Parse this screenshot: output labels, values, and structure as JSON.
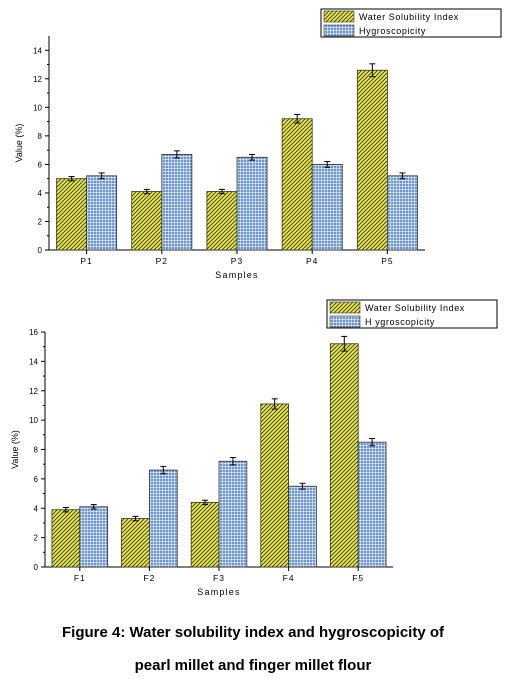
{
  "charts": [
    {
      "chart_data": {
        "type": "bar",
        "categories": [
          "P1",
          "P2",
          "P3",
          "P4",
          "P5"
        ],
        "series": [
          {
            "name": "Water Solubility Index",
            "values": [
              5.0,
              4.1,
              4.1,
              9.2,
              12.6
            ],
            "errors": [
              0.15,
              0.15,
              0.15,
              0.3,
              0.45
            ]
          },
          {
            "name": "Hygroscopicity",
            "values": [
              5.2,
              6.7,
              6.5,
              6.0,
              5.2
            ],
            "errors": [
              0.2,
              0.25,
              0.2,
              0.2,
              0.2
            ]
          }
        ],
        "xlabel": "Samples",
        "ylabel": "Value (%)",
        "ylim": [
          0,
          15
        ],
        "yticks": [
          "0",
          "2",
          "4",
          "6",
          "8",
          "10",
          "12",
          "14"
        ],
        "legend_position": "top-right",
        "grid": false
      }
    },
    {
      "chart_data": {
        "type": "bar",
        "categories": [
          "F1",
          "F2",
          "F3",
          "F4",
          "F5"
        ],
        "series": [
          {
            "name": "Water Solubility Index",
            "values": [
              3.9,
              3.3,
              4.4,
              11.1,
              15.2
            ],
            "errors": [
              0.15,
              0.15,
              0.15,
              0.35,
              0.5
            ]
          },
          {
            "name": "Hygroscopicity",
            "values": [
              4.1,
              6.6,
              7.2,
              5.5,
              8.5
            ],
            "errors": [
              0.15,
              0.25,
              0.25,
              0.2,
              0.25
            ]
          }
        ],
        "xlabel": "Samples",
        "ylabel": "Value (%)",
        "ylim": [
          0,
          16
        ],
        "yticks": [
          "0",
          "2",
          "4",
          "6",
          "8",
          "10",
          "12",
          "14",
          "16"
        ],
        "legend_position": "top-right",
        "grid": false
      }
    }
  ],
  "legend_top": [
    "Water Solubility Index",
    "Hygroscopicity"
  ],
  "legend_bottom": [
    "Water Solubility Index",
    "H ygroscopicity"
  ],
  "caption": {
    "line1": "Figure 4: Water solubility index and hygroscopicity of",
    "line2": "pearl millet and finger millet flour"
  },
  "colors": {
    "wsi_fill": "#e8e84a",
    "wsi_hatch": "#3a3a10",
    "hyg_fill": "#6e95c6",
    "hyg_grid": "#d9e6f4"
  }
}
